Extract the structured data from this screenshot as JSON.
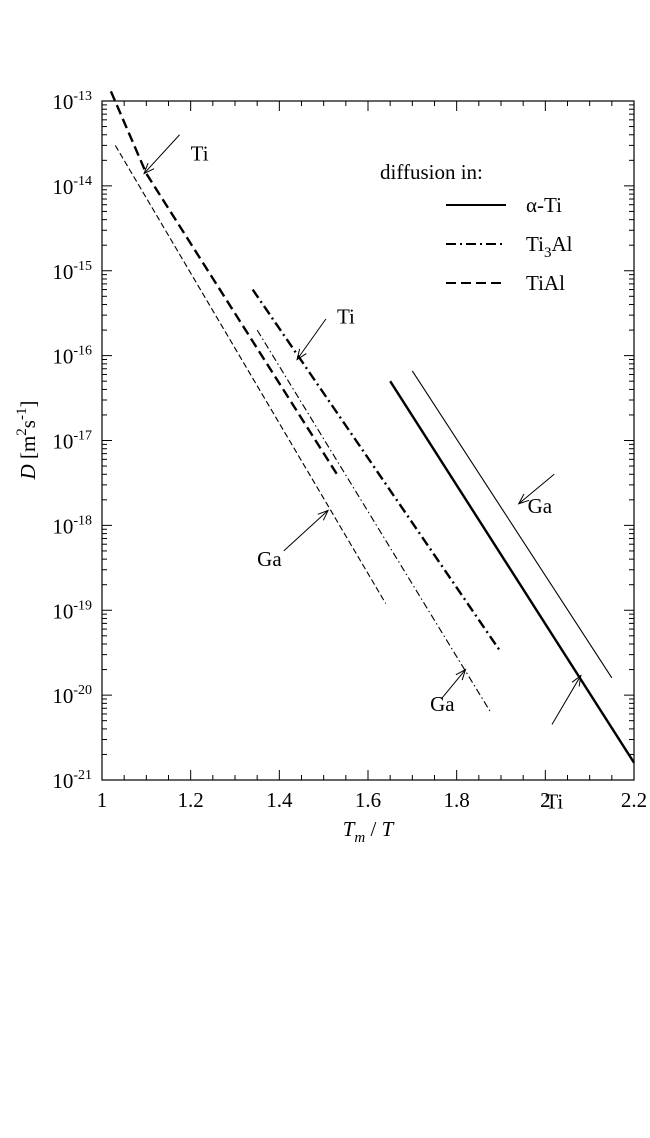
{
  "chart_data": {
    "type": "line",
    "xlabel": {
      "main": "T",
      "sub": "m",
      "tail": " / T"
    },
    "ylabel": {
      "main": "D",
      "unit": "[m",
      "sup1": "2",
      "mid": "s",
      "sup2": "-1",
      "end": "]"
    },
    "xlim": [
      1.0,
      2.2
    ],
    "ylim_log10": [
      -21,
      -13
    ],
    "y_scale": "log",
    "x_ticks": [
      {
        "v": 1.0,
        "label": "1"
      },
      {
        "v": 1.2,
        "label": "1.2"
      },
      {
        "v": 1.4,
        "label": "1.4"
      },
      {
        "v": 1.6,
        "label": "1.6"
      },
      {
        "v": 1.8,
        "label": "1.8"
      },
      {
        "v": 2.0,
        "label": "2"
      },
      {
        "v": 2.2,
        "label": "2.2"
      }
    ],
    "y_ticks": [
      {
        "e": -13,
        "base": "10",
        "exp": "-13"
      },
      {
        "e": -14,
        "base": "10",
        "exp": "-14"
      },
      {
        "e": -15,
        "base": "10",
        "exp": "-15"
      },
      {
        "e": -16,
        "base": "10",
        "exp": "-16"
      },
      {
        "e": -17,
        "base": "10",
        "exp": "-17"
      },
      {
        "e": -18,
        "base": "10",
        "exp": "-18"
      },
      {
        "e": -19,
        "base": "10",
        "exp": "-19"
      },
      {
        "e": -20,
        "base": "10",
        "exp": "-20"
      },
      {
        "e": -21,
        "base": "10",
        "exp": "-21"
      }
    ],
    "legend": {
      "title": "diffusion in:",
      "position": "top-right",
      "entries": [
        {
          "style": "solid",
          "text": "α-Ti",
          "sub": ""
        },
        {
          "style": "dashdot",
          "text": "Ti",
          "sub": "3",
          "tail": "Al"
        },
        {
          "style": "dashed",
          "text": "TiAl",
          "sub": ""
        }
      ]
    },
    "series": [
      {
        "matrix": "α-Ti",
        "tracer": "Ti",
        "style": "solid",
        "weight": "thick",
        "points": [
          [
            1.65,
            5e-17
          ],
          [
            2.2,
            1.6e-21
          ]
        ]
      },
      {
        "matrix": "α-Ti",
        "tracer": "Ga",
        "style": "solid",
        "weight": "thin",
        "points": [
          [
            1.7,
            6.6e-17
          ],
          [
            2.15,
            1.6e-20
          ]
        ]
      },
      {
        "matrix": "Ti3Al",
        "tracer": "Ti",
        "style": "dashdot",
        "weight": "thick",
        "points": [
          [
            1.34,
            6e-16
          ],
          [
            1.9,
            3.2e-20
          ]
        ]
      },
      {
        "matrix": "Ti3Al",
        "tracer": "Ga",
        "style": "dashdot",
        "weight": "thin",
        "points": [
          [
            1.35,
            2e-16
          ],
          [
            1.875,
            6.5e-21
          ]
        ]
      },
      {
        "matrix": "TiAl",
        "tracer": "Ti",
        "style": "dashed",
        "weight": "thick",
        "points": [
          [
            1.02,
            1.3e-13
          ],
          [
            1.1,
            1.4e-14
          ],
          [
            1.53,
            4e-18
          ]
        ]
      },
      {
        "matrix": "TiAl",
        "tracer": "Ga",
        "style": "dashed",
        "weight": "thin",
        "points": [
          [
            1.03,
            3e-14
          ],
          [
            1.64,
            1.2e-19
          ]
        ]
      }
    ],
    "annotations": [
      {
        "text": "Ti",
        "x": 1.2,
        "y": 2e-14,
        "tip": [
          1.095,
          1.4e-14
        ],
        "tail": [
          1.175,
          4e-14
        ]
      },
      {
        "text": "Ti",
        "x": 1.53,
        "y": 2.4e-16,
        "tip": [
          1.44,
          9e-17
        ],
        "tail": [
          1.505,
          2.7e-16
        ]
      },
      {
        "text": "Ga",
        "x": 1.96,
        "y": 1.4e-18,
        "tip": [
          1.94,
          1.8e-18
        ],
        "tail": [
          2.02,
          4e-18
        ]
      },
      {
        "text": "Ga",
        "x": 1.35,
        "y": 3.3e-19,
        "tip": [
          1.51,
          1.5e-18
        ],
        "tail": [
          1.41,
          5e-19
        ]
      },
      {
        "text": "Ga",
        "x": 1.74,
        "y": 6.5e-21,
        "tip": [
          1.82,
          2e-20
        ],
        "tail": [
          1.765,
          9e-21
        ]
      },
      {
        "text": "Ti",
        "x": 2.0,
        "y": 4.6e-22,
        "tip": [
          2.08,
          1.7e-20
        ],
        "tail": [
          2.015,
          4.5e-21
        ]
      }
    ]
  }
}
